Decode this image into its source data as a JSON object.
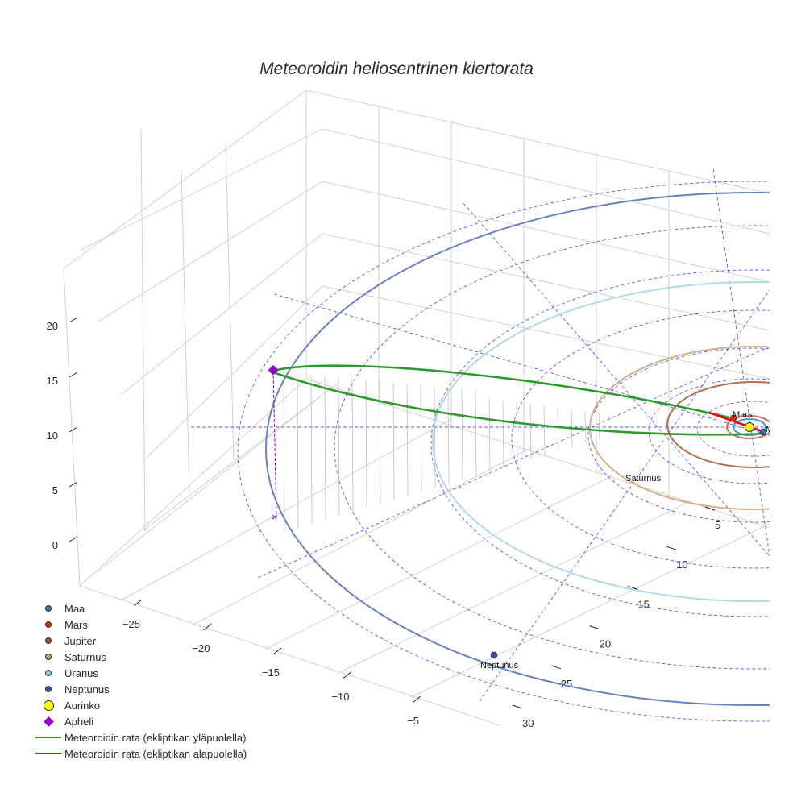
{
  "chart_data": {
    "type": "scatter3d",
    "title": "Meteoroidin heliosentrinen kiertorata",
    "axes": {
      "x": {
        "ticks": [
          -25,
          -20,
          -15,
          -10,
          -5
        ]
      },
      "y": {
        "ticks": [
          5,
          10,
          15,
          20,
          25,
          30
        ]
      },
      "z": {
        "ticks": [
          0,
          5,
          10,
          15,
          20
        ]
      }
    },
    "planets": [
      {
        "name": "Maa",
        "color": "#1f77b4",
        "orbit_radius_au": 1.0
      },
      {
        "name": "Mars",
        "color": "#d62f0a",
        "orbit_radius_au": 1.52
      },
      {
        "name": "Jupiter",
        "color": "#a0522d",
        "orbit_radius_au": 5.2
      },
      {
        "name": "Saturnus",
        "color": "#c49a6c",
        "orbit_radius_au": 9.5
      },
      {
        "name": "Uranus",
        "color": "#87c7dc",
        "orbit_radius_au": 19.2
      },
      {
        "name": "Neptunus",
        "color": "#3b4fa8",
        "orbit_radius_au": 30.1
      }
    ],
    "sun": {
      "name": "Aurinko",
      "color": "#ffff00"
    },
    "aphelion": {
      "name": "Apheli",
      "color": "#9400d3"
    },
    "meteoroid": [
      {
        "name": "Meteoroidin rata (ekliptikan yläpuolella)",
        "color": "#228b22"
      },
      {
        "name": "Meteoroidin rata (ekliptikan alapuolella)",
        "color": "#ff0000"
      }
    ],
    "legend": "bottom-left",
    "jupiter_label_visible": "Ju"
  }
}
